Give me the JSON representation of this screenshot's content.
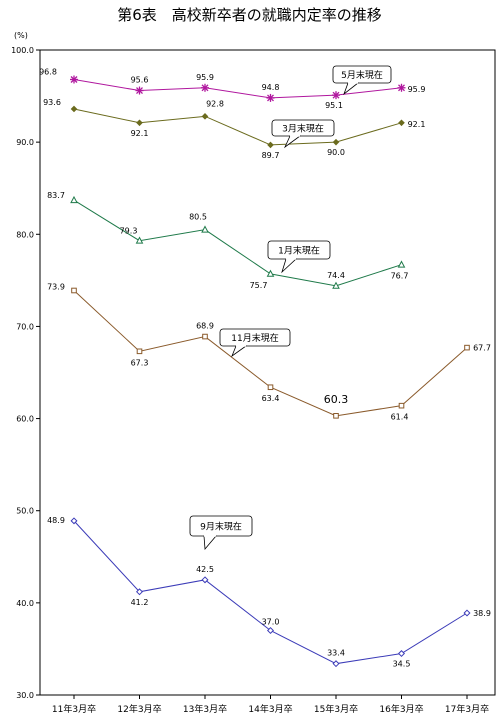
{
  "chart_data": {
    "type": "line",
    "title": "第6表　高校新卒者の就職内定率の推移",
    "ylabel": "(%)",
    "xlabel": "",
    "ylim": [
      30,
      100
    ],
    "y_ticks": [
      "30.0",
      "40.0",
      "50.0",
      "60.0",
      "70.0",
      "80.0",
      "90.0",
      "100.0"
    ],
    "categories": [
      "11年3月卒",
      "12年3月卒",
      "13年3月卒",
      "14年3月卒",
      "15年3月卒",
      "16年3月卒",
      "17年3月卒"
    ],
    "grid": false,
    "series": [
      {
        "name": "5月末現在",
        "color": "#b0179e",
        "marker": "star",
        "values": [
          96.8,
          95.6,
          95.9,
          94.8,
          95.1,
          95.9,
          null
        ],
        "labels": [
          "96.8",
          "95.6",
          "95.9",
          "94.8",
          "95.1",
          "95.9",
          ""
        ]
      },
      {
        "name": "3月末現在",
        "color": "#6b6b1e",
        "marker": "diamond",
        "values": [
          93.6,
          92.1,
          92.8,
          89.7,
          90.0,
          92.1,
          null
        ],
        "labels": [
          "93.6",
          "92.1",
          "92.8",
          "89.7",
          "90.0",
          "92.1",
          ""
        ]
      },
      {
        "name": "1月末現在",
        "color": "#1f7a4a",
        "marker": "triangle",
        "values": [
          83.7,
          79.3,
          80.5,
          75.7,
          74.4,
          76.7,
          null
        ],
        "labels": [
          "83.7",
          "79.3",
          "80.5",
          "75.7",
          "74.4",
          "76.7",
          ""
        ]
      },
      {
        "name": "11月末現在",
        "color": "#8a5a2b",
        "marker": "square",
        "values": [
          73.9,
          67.3,
          68.9,
          63.4,
          60.3,
          61.4,
          67.7
        ],
        "labels": [
          "73.9",
          "67.3",
          "68.9",
          "63.4",
          "60.3",
          "61.4",
          "67.7"
        ]
      },
      {
        "name": "9月末現在",
        "color": "#3b3bb8",
        "marker": "diamond-open",
        "values": [
          48.9,
          41.2,
          42.5,
          37.0,
          33.4,
          34.5,
          38.9
        ],
        "labels": [
          "48.9",
          "41.2",
          "42.5",
          "37.0",
          "33.4",
          "34.5",
          "38.9"
        ]
      }
    ]
  }
}
